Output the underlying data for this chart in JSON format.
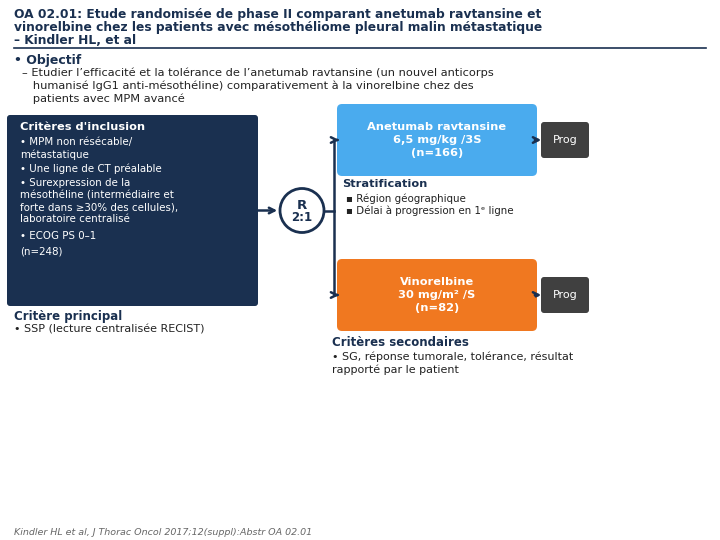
{
  "title_line1": "OA 02.01: Etude randomisée de phase II comparant anetumab ravtansine et",
  "title_line2": "vinorelbine chez les patients avec mésothéliome pleural malin métastatique",
  "title_line3": "– Kindler HL, et al",
  "objectif_label": "• Objectif",
  "inclusion_title": "Critères d'inclusion",
  "inclusion_bullets": [
    "MPM non résécable/\nmétastatique",
    "Une ligne de CT préalable",
    "Surexpression de la\nmésothéline (intermédiaire et\nforte dans ≥30% des cellules),\nlaboratoire centralisé",
    "ECOG PS 0–1"
  ],
  "inclusion_n": "(n=248)",
  "inclusion_bg": "#1a3050",
  "anetumab_text": "Anetumab ravtansine\n6,5 mg/kg /3S\n(n=166)",
  "anetumab_bg": "#4AABEE",
  "vinorelbine_text": "Vinorelbine\n30 mg/m² /S\n(n=82)",
  "vinorelbine_bg": "#F07820",
  "prog_bg": "#404040",
  "strat_title": "Stratification",
  "strat_bullets": [
    "Région géographique",
    "Délai à progression en 1ᵉ ligne"
  ],
  "critere_principal_title": "Critère principal",
  "critere_principal_bullet": "SSP (lecture centralisée RECIST)",
  "criteres_secondaires_title": "Critères secondaires",
  "criteres_secondaires_bullet": "SG, réponse tumorale, tolérance, résultat\nrapporté par le patient",
  "citation": "Kindler HL et al, J Thorac Oncol 2017;12(suppl):Abstr OA 02.01",
  "bg_color": "#ffffff",
  "text_color": "#222222",
  "dark_blue": "#1a3050",
  "arrow_color": "#1a3050"
}
